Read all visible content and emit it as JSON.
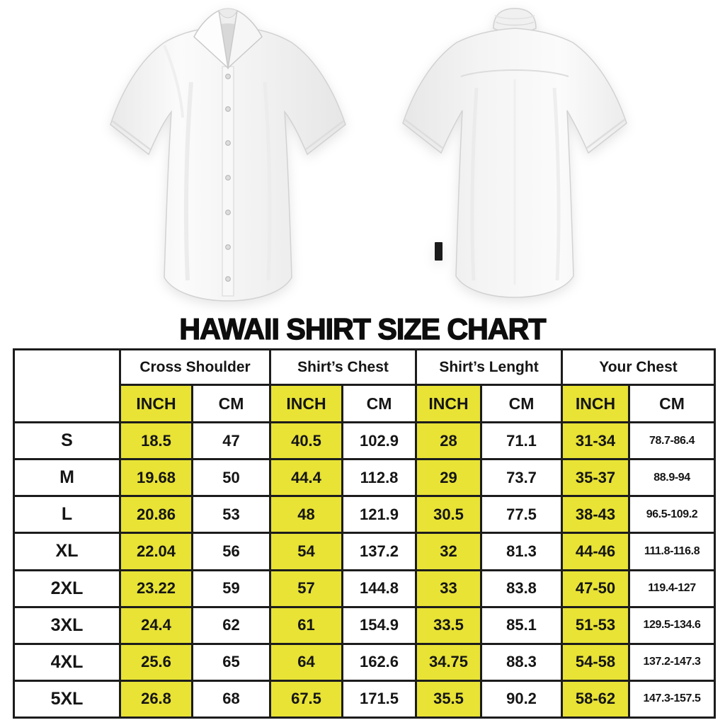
{
  "title": "HAWAII SHIRT SIZE CHART",
  "colors": {
    "highlight_yellow": "#e8e335",
    "table_border": "#1c1c1c",
    "text": "#151515"
  },
  "figures": {
    "front_shirt": "white-short-sleeve-button-shirt-front",
    "back_shirt": "white-short-sleeve-button-shirt-back"
  },
  "table": {
    "groups": [
      {
        "label": "Cross Shoulder"
      },
      {
        "label": "Shirt’s Chest"
      },
      {
        "label": "Shirt’s Lenght"
      },
      {
        "label": "Your Chest"
      }
    ],
    "unit_inch": "INCH",
    "unit_cm": "CM",
    "rows": [
      {
        "size": "S",
        "values": [
          "18.5",
          "47",
          "40.5",
          "102.9",
          "28",
          "71.1",
          "31-34",
          "78.7-86.4"
        ]
      },
      {
        "size": "M",
        "values": [
          "19.68",
          "50",
          "44.4",
          "112.8",
          "29",
          "73.7",
          "35-37",
          "88.9-94"
        ]
      },
      {
        "size": "L",
        "values": [
          "20.86",
          "53",
          "48",
          "121.9",
          "30.5",
          "77.5",
          "38-43",
          "96.5-109.2"
        ]
      },
      {
        "size": "XL",
        "values": [
          "22.04",
          "56",
          "54",
          "137.2",
          "32",
          "81.3",
          "44-46",
          "111.8-116.8"
        ]
      },
      {
        "size": "2XL",
        "values": [
          "23.22",
          "59",
          "57",
          "144.8",
          "33",
          "83.8",
          "47-50",
          "119.4-127"
        ]
      },
      {
        "size": "3XL",
        "values": [
          "24.4",
          "62",
          "61",
          "154.9",
          "33.5",
          "85.1",
          "51-53",
          "129.5-134.6"
        ]
      },
      {
        "size": "4XL",
        "values": [
          "25.6",
          "65",
          "64",
          "162.6",
          "34.75",
          "88.3",
          "54-58",
          "137.2-147.3"
        ]
      },
      {
        "size": "5XL",
        "values": [
          "26.8",
          "68",
          "67.5",
          "171.5",
          "35.5",
          "90.2",
          "58-62",
          "147.3-157.5"
        ]
      }
    ]
  }
}
